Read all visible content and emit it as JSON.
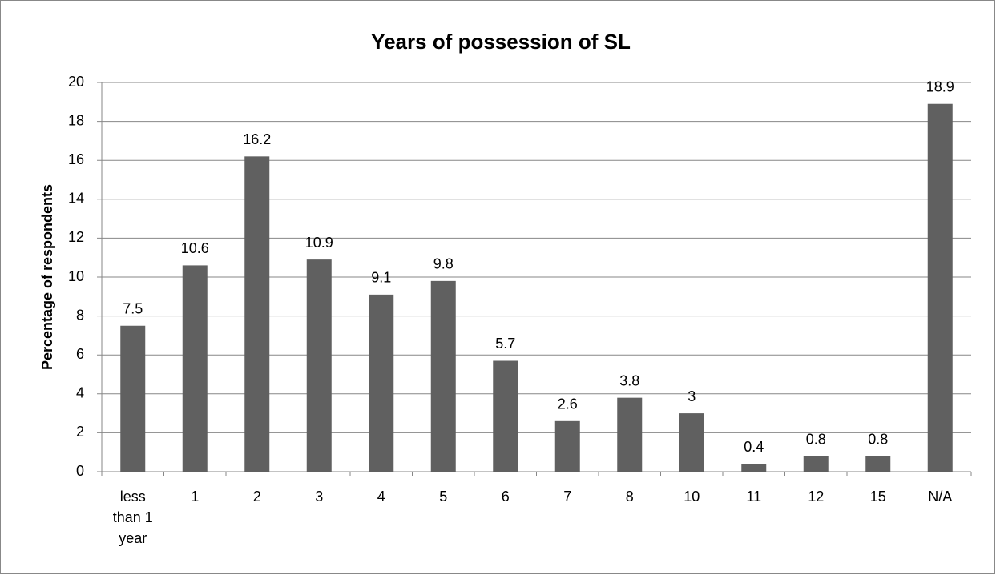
{
  "chart_data": {
    "type": "bar",
    "title": "Years of possession of SL",
    "y_label": "Percentage of respondents",
    "categories": [
      "less than 1 year",
      "1",
      "2",
      "3",
      "4",
      "5",
      "6",
      "7",
      "8",
      "10",
      "11",
      "12",
      "15",
      "N/A"
    ],
    "values": [
      7.5,
      10.6,
      16.2,
      10.9,
      9.1,
      9.8,
      5.7,
      2.6,
      3.8,
      3,
      0.4,
      0.8,
      0.8,
      18.9
    ],
    "color": "#606060",
    "ylim": [
      0,
      20
    ],
    "yticks": [
      0,
      2,
      4,
      6,
      8,
      10,
      12,
      14,
      16,
      18,
      20
    ],
    "grid": true
  }
}
